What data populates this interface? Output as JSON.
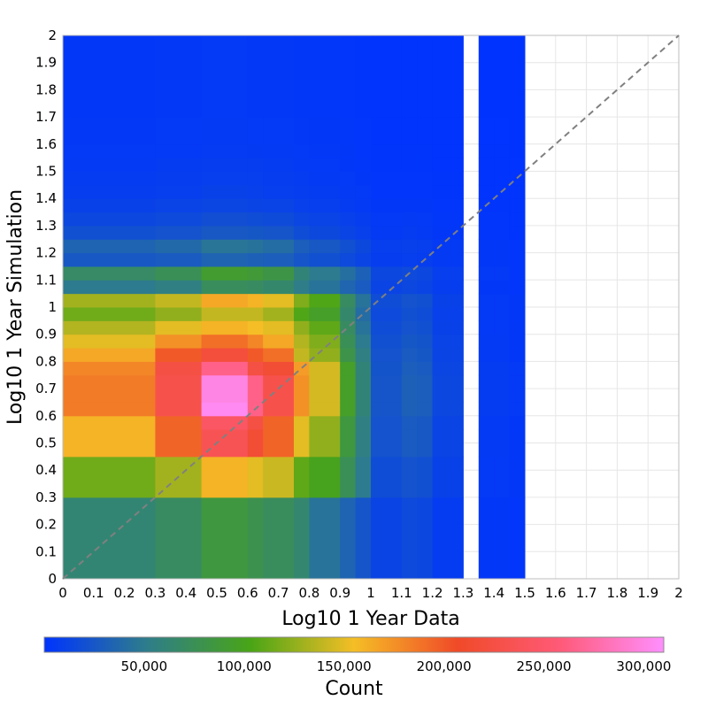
{
  "chart_data": {
    "type": "heatmap",
    "title": "",
    "xlabel": "Log10 1 Year Data",
    "ylabel": "Log10 1 Year Simulation",
    "xlim": [
      0,
      2
    ],
    "ylim": [
      0,
      2
    ],
    "x_ticks": [
      "0",
      "0.1",
      "0.2",
      "0.3",
      "0.4",
      "0.5",
      "0.6",
      "0.7",
      "0.8",
      "0.9",
      "1",
      "1.1",
      "1.2",
      "1.3",
      "1.4",
      "1.5",
      "1.6",
      "1.7",
      "1.8",
      "1.9",
      "2"
    ],
    "y_ticks": [
      "0",
      "0.1",
      "0.2",
      "0.3",
      "0.4",
      "0.5",
      "0.6",
      "0.7",
      "0.8",
      "0.9",
      "1",
      "1.1",
      "1.2",
      "1.3",
      "1.4",
      "1.5",
      "1.6",
      "1.7",
      "1.8",
      "1.9",
      "2"
    ],
    "grid": true,
    "reference_line": {
      "style": "dashed",
      "color": "#808080",
      "from": [
        0,
        0
      ],
      "to": [
        2,
        2
      ]
    },
    "x_bins": [
      0,
      0.3,
      0.45,
      0.6,
      0.65,
      0.75,
      0.8,
      0.9,
      0.95,
      1.0,
      1.1,
      1.15,
      1.2,
      1.3,
      1.35,
      1.4,
      1.45,
      1.5
    ],
    "y_bins": [
      0,
      0.3,
      0.45,
      0.55,
      0.6,
      0.65,
      0.75,
      0.8,
      0.85,
      0.9,
      0.95,
      1.0,
      1.05,
      1.1,
      1.15,
      1.2,
      1.25,
      1.3,
      1.35,
      1.4,
      1.45,
      1.5,
      1.55,
      1.6,
      1.7,
      2.0
    ],
    "values": [
      [
        62000,
        70000,
        85000,
        78000,
        72000,
        64000,
        45000,
        34000,
        24000,
        12000,
        16000,
        14000,
        6000,
        null,
        3000,
        3000,
        2000
      ],
      [
        115000,
        130000,
        160000,
        150000,
        142000,
        110000,
        100000,
        75000,
        50000,
        18000,
        22000,
        20000,
        10000,
        null,
        4000,
        4000,
        3000
      ],
      [
        160000,
        195000,
        235000,
        215000,
        195000,
        150000,
        125000,
        85000,
        55000,
        22000,
        28000,
        26000,
        12000,
        null,
        5000,
        5000,
        3000
      ],
      [
        160000,
        195000,
        245000,
        225000,
        195000,
        150000,
        125000,
        85000,
        55000,
        22000,
        28000,
        26000,
        12000,
        null,
        5000,
        5000,
        3000
      ],
      [
        185000,
        230000,
        305000,
        265000,
        230000,
        175000,
        145000,
        95000,
        60000,
        24000,
        32000,
        30000,
        14000,
        null,
        6000,
        6000,
        4000
      ],
      [
        185000,
        230000,
        300000,
        265000,
        230000,
        175000,
        145000,
        95000,
        60000,
        24000,
        32000,
        30000,
        14000,
        null,
        6000,
        6000,
        4000
      ],
      [
        180000,
        225000,
        265000,
        225000,
        215000,
        170000,
        145000,
        95000,
        60000,
        23000,
        30000,
        28000,
        13000,
        null,
        6000,
        6000,
        4000
      ],
      [
        165000,
        200000,
        220000,
        200000,
        190000,
        140000,
        125000,
        80000,
        55000,
        22000,
        28000,
        25000,
        12000,
        null,
        5000,
        5000,
        3000
      ],
      [
        150000,
        175000,
        190000,
        180000,
        165000,
        135000,
        120000,
        75000,
        50000,
        20000,
        25000,
        23000,
        11000,
        null,
        5000,
        5000,
        3000
      ],
      [
        135000,
        150000,
        160000,
        155000,
        150000,
        125000,
        110000,
        70000,
        45000,
        18000,
        22000,
        20000,
        10000,
        null,
        4000,
        4000,
        3000
      ],
      [
        115000,
        125000,
        140000,
        140000,
        130000,
        105000,
        95000,
        65000,
        40000,
        16000,
        20000,
        18000,
        9000,
        null,
        4000,
        4000,
        3000
      ],
      [
        130000,
        140000,
        165000,
        160000,
        150000,
        120000,
        105000,
        70000,
        45000,
        18000,
        22000,
        20000,
        10000,
        null,
        4000,
        4000,
        3000
      ],
      [
        50000,
        55000,
        72000,
        70000,
        65000,
        52000,
        45000,
        35000,
        28000,
        12000,
        14000,
        12000,
        7000,
        null,
        3000,
        3000,
        2000
      ],
      [
        68000,
        75000,
        92000,
        88000,
        82000,
        60000,
        50000,
        42000,
        32000,
        14000,
        16000,
        14000,
        8000,
        null,
        4000,
        4000,
        2000
      ],
      [
        26000,
        28000,
        34000,
        32000,
        30000,
        24000,
        20000,
        16000,
        12000,
        7000,
        8000,
        7000,
        5000,
        null,
        3000,
        3000,
        2000
      ],
      [
        34000,
        38000,
        46000,
        44000,
        40000,
        30000,
        26000,
        20000,
        15000,
        8000,
        9000,
        8000,
        5000,
        null,
        3000,
        3000,
        2000
      ],
      [
        20000,
        22000,
        26000,
        25000,
        24000,
        18000,
        15000,
        12000,
        9000,
        5000,
        6000,
        5000,
        3000,
        null,
        2000,
        2000,
        1000
      ],
      [
        14000,
        16000,
        19000,
        18000,
        17000,
        13000,
        11000,
        9000,
        7000,
        4000,
        5000,
        4000,
        2500,
        null,
        2000,
        2000,
        1000
      ],
      [
        10000,
        11000,
        13000,
        12000,
        11000,
        9000,
        8000,
        6000,
        5000,
        3000,
        3000,
        3000,
        2000,
        null,
        1500,
        1500,
        1000
      ],
      [
        7000,
        8000,
        10000,
        9000,
        8000,
        7000,
        6000,
        5000,
        4000,
        2000,
        2000,
        2000,
        1500,
        null,
        1000,
        1000,
        800
      ],
      [
        6000,
        7000,
        8000,
        8000,
        7000,
        6000,
        5000,
        4000,
        3000,
        2000,
        2000,
        2000,
        1200,
        null,
        1000,
        1000,
        700
      ],
      [
        5000,
        6000,
        7000,
        7000,
        6000,
        5000,
        4000,
        3000,
        2500,
        1500,
        1500,
        1500,
        1000,
        null,
        800,
        800,
        600
      ],
      [
        4000,
        4500,
        5500,
        5200,
        5000,
        4000,
        3500,
        3000,
        2000,
        1200,
        1200,
        1200,
        900,
        null,
        700,
        700,
        500
      ],
      [
        3500,
        4000,
        5000,
        4500,
        4200,
        3500,
        3000,
        2500,
        1800,
        1000,
        1000,
        1000,
        800,
        null,
        600,
        600,
        400
      ],
      [
        3000,
        3500,
        4000,
        3800,
        3600,
        3000,
        2500,
        2000,
        1500,
        900,
        900,
        900,
        700,
        null,
        500,
        500,
        400
      ]
    ],
    "colorbar": {
      "label": "Count",
      "min": 0,
      "max": 310000,
      "ticks": [
        50000,
        100000,
        150000,
        200000,
        250000,
        300000
      ],
      "tick_labels": [
        "50,000",
        "100,000",
        "150,000",
        "200,000",
        "250,000",
        "300,000"
      ],
      "colormap": [
        "#0033ff",
        "#2e7d8a",
        "#49a516",
        "#f5be26",
        "#f04a28",
        "#ff5a78",
        "#ff8fff"
      ]
    }
  }
}
